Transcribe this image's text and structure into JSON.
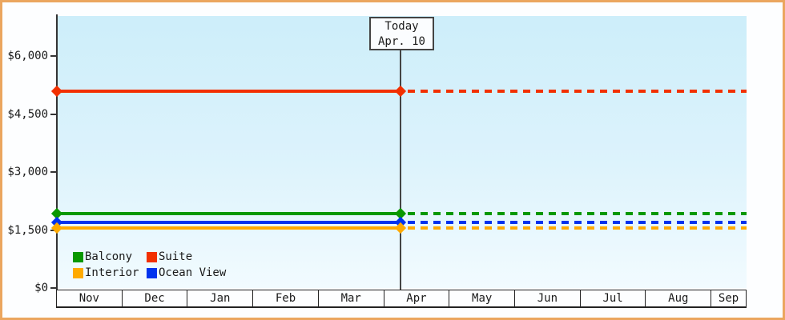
{
  "window": {
    "border_color": "#eba65f"
  },
  "today_box": {
    "line1": "Today",
    "line2": "Apr. 10"
  },
  "chart_data": {
    "type": "line",
    "title": "",
    "xlabel": "",
    "ylabel": "",
    "categories": [
      "Nov",
      "Dec",
      "Jan",
      "Feb",
      "Mar",
      "Apr",
      "May",
      "Jun",
      "Jul",
      "Aug",
      "Sep"
    ],
    "y_ticks": {
      "labels": [
        "$0",
        "$1,500",
        "$3,000",
        "$4,500",
        "$6,000"
      ],
      "values": [
        0,
        1500,
        3000,
        4500,
        6000
      ]
    },
    "ylim": [
      0,
      6000
    ],
    "today": {
      "label": "Today",
      "date": "Apr. 10",
      "month": "Apr",
      "day": 10
    },
    "series": [
      {
        "name": "Suite",
        "color": "#f23000",
        "value": 5100,
        "style": "solid-then-dashed"
      },
      {
        "name": "Balcony",
        "color": "#0a9800",
        "value": 1920,
        "style": "solid-then-dashed"
      },
      {
        "name": "Ocean View",
        "color": "#0033ee",
        "value": 1700,
        "style": "solid-then-dashed"
      },
      {
        "name": "Interior",
        "color": "#ffaa00",
        "value": 1550,
        "style": "solid-then-dashed"
      }
    ],
    "legend": {
      "position": "bottom-left",
      "rows": [
        [
          "Balcony",
          "Suite"
        ],
        [
          "Interior",
          "Ocean View"
        ]
      ]
    },
    "grid": false,
    "notes": "flat price lines; solid before today marker, dotted after"
  }
}
